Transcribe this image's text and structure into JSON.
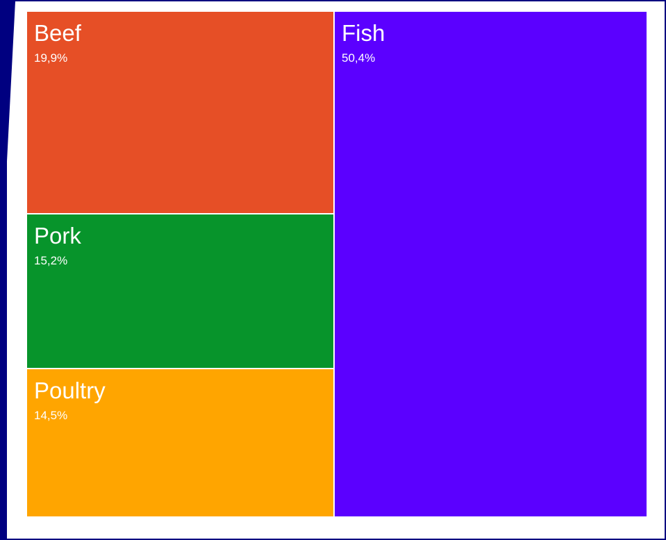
{
  "chart_data": {
    "type": "treemap",
    "title": "",
    "items": [
      {
        "name": "Beef",
        "label": "19,9%",
        "value": 19.9,
        "color": "#e64f26"
      },
      {
        "name": "Pork",
        "label": "15,2%",
        "value": 15.2,
        "color": "#07942b"
      },
      {
        "name": "Poultry",
        "label": "14,5%",
        "value": 14.5,
        "color": "#ffa500"
      },
      {
        "name": "Fish",
        "label": "50,4%",
        "value": 50.4,
        "color": "#5b00ff"
      }
    ]
  },
  "colors": {
    "background": "#000080",
    "panel": "#ffffff",
    "tile_text": "#ffffff"
  }
}
